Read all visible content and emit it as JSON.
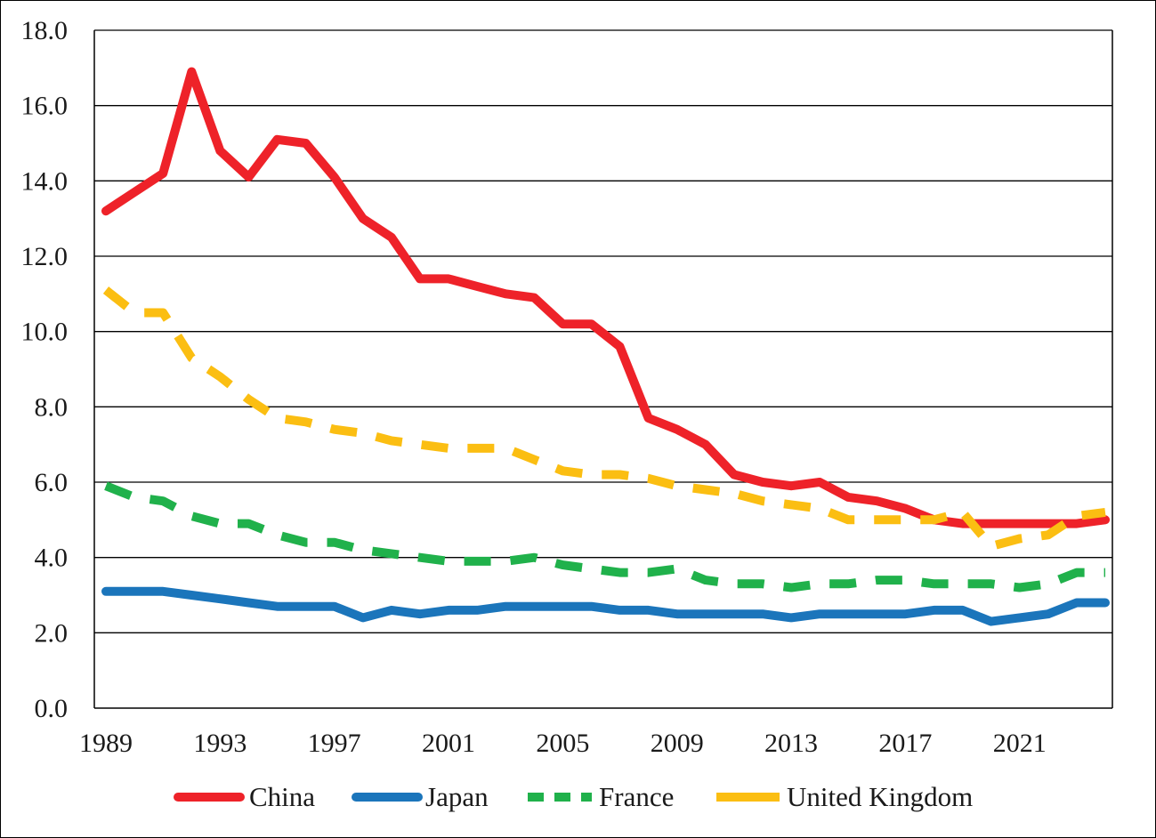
{
  "chart_data": {
    "type": "line",
    "title": "",
    "xlabel": "",
    "ylabel": "",
    "xlim": [
      1989,
      2024
    ],
    "ylim": [
      0,
      18
    ],
    "y_ticks": [
      "0.0",
      "2.0",
      "4.0",
      "6.0",
      "8.0",
      "10.0",
      "12.0",
      "14.0",
      "16.0",
      "18.0"
    ],
    "y_tick_values": [
      0,
      2,
      4,
      6,
      8,
      10,
      12,
      14,
      16,
      18
    ],
    "x_ticks": [
      "1989",
      "1993",
      "1997",
      "2001",
      "2005",
      "2009",
      "2013",
      "2017",
      "2021"
    ],
    "x_tick_values": [
      1989,
      1993,
      1997,
      2001,
      2005,
      2009,
      2013,
      2017,
      2021
    ],
    "grid": "horizontal",
    "legend_position": "bottom",
    "x": [
      1989,
      1990,
      1991,
      1992,
      1993,
      1994,
      1995,
      1996,
      1997,
      1998,
      1999,
      2000,
      2001,
      2002,
      2003,
      2004,
      2005,
      2006,
      2007,
      2008,
      2009,
      2010,
      2011,
      2012,
      2013,
      2014,
      2015,
      2016,
      2017,
      2018,
      2019,
      2020,
      2021,
      2022,
      2023,
      2024
    ],
    "series": [
      {
        "name": "China",
        "color": "#ee2229",
        "style": "solid",
        "values": [
          13.2,
          13.7,
          14.2,
          16.9,
          14.8,
          14.1,
          15.1,
          15.0,
          14.1,
          13.0,
          12.5,
          11.4,
          11.4,
          11.2,
          11.0,
          10.9,
          10.2,
          10.2,
          9.6,
          7.7,
          7.4,
          7.0,
          6.2,
          6.0,
          5.9,
          6.0,
          5.6,
          5.5,
          5.3,
          5.0,
          4.9,
          4.9,
          4.9,
          4.9,
          4.9,
          5.0
        ]
      },
      {
        "name": "Japan",
        "color": "#1b75bb",
        "style": "solid",
        "values": [
          3.1,
          3.1,
          3.1,
          3.0,
          2.9,
          2.8,
          2.7,
          2.7,
          2.7,
          2.4,
          2.6,
          2.5,
          2.6,
          2.6,
          2.7,
          2.7,
          2.7,
          2.7,
          2.6,
          2.6,
          2.5,
          2.5,
          2.5,
          2.5,
          2.4,
          2.5,
          2.5,
          2.5,
          2.5,
          2.6,
          2.6,
          2.3,
          2.4,
          2.5,
          2.8,
          2.8
        ]
      },
      {
        "name": "France",
        "color": "#20b14b",
        "style": "dashed",
        "values": [
          5.9,
          5.6,
          5.5,
          5.1,
          4.9,
          4.9,
          4.6,
          4.4,
          4.4,
          4.2,
          4.1,
          4.0,
          3.9,
          3.9,
          3.9,
          4.0,
          3.8,
          3.7,
          3.6,
          3.6,
          3.7,
          3.4,
          3.3,
          3.3,
          3.2,
          3.3,
          3.3,
          3.4,
          3.4,
          3.3,
          3.3,
          3.3,
          3.2,
          3.3,
          3.6,
          3.6
        ]
      },
      {
        "name": "United Kingdom",
        "color": "#fbbe12",
        "style": "dashed",
        "values": [
          11.1,
          10.5,
          10.5,
          9.3,
          8.8,
          8.2,
          7.7,
          7.6,
          7.4,
          7.3,
          7.1,
          7.0,
          6.9,
          6.9,
          6.9,
          6.6,
          6.3,
          6.2,
          6.2,
          6.1,
          5.9,
          5.8,
          5.7,
          5.5,
          5.4,
          5.3,
          5.0,
          5.0,
          5.0,
          5.0,
          5.2,
          4.3,
          4.5,
          4.6,
          5.1,
          5.2
        ]
      }
    ]
  }
}
